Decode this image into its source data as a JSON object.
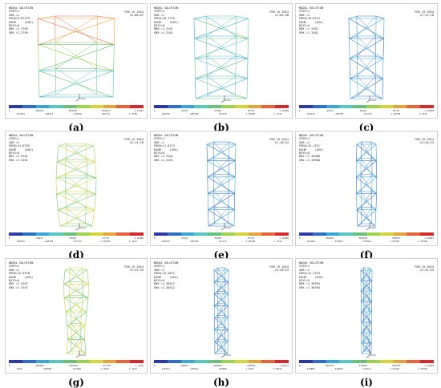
{
  "colors": {
    "scale": [
      "#2b3aa8",
      "#2e6fc9",
      "#3aa6d8",
      "#57c8c4",
      "#66c27a",
      "#9bd14c",
      "#d6d43b",
      "#e8a33a",
      "#e7643a",
      "#d42a2a"
    ]
  },
  "panels": [
    {
      "label": "(a)",
      "header_lines": [
        "NODAL SOLUTION",
        "STEP=1",
        "SUB =1",
        "FREQ=9.87979",
        "USUM     (AVG)",
        "RSYS=0",
        "DMX =1.2789",
        "SMX =1.2789"
      ],
      "header_right": [
        "FEB 15 2024",
        "15:06:07"
      ],
      "ticks_top": [
        "0",
        ".284209",
        ".568418",
        ".852627",
        "1.13684"
      ],
      "ticks_bot": [
        ".142104",
        ".426313",
        ".710522",
        ".994731",
        "1.2789"
      ]
    },
    {
      "label": "(b)",
      "header_lines": [
        "NODAL SOLUTION",
        "STEP=1",
        "SUB =1",
        "FREQ=10.2719",
        "USUM     (AVG)",
        "RSYS=0",
        "DMX =1.3161",
        "SMX =1.3161"
      ],
      "header_right": [
        "FEB 15 2024",
        "21:05:58"
      ],
      "ticks_top": [
        "0",
        ".29247",
        ".58494",
        ".87741",
        "1.16988"
      ],
      "ticks_bot": [
        ".146235",
        ".438705",
        ".731175",
        "1.02365",
        "1.3161"
      ]
    },
    {
      "label": "(c)",
      "header_lines": [
        "NODAL SOLUTION",
        "STEP=1",
        "SUB =1",
        "FREQ=10.6719",
        "USUM     (AVG)",
        "RSYS=0",
        "DMX =1.3161",
        "SMX =1.3161"
      ],
      "header_right": [
        "FEB 15 2024",
        "21:12:18"
      ],
      "ticks_top": [
        "0",
        ".29247",
        ".58494",
        ".87741",
        "1.16988"
      ],
      "ticks_bot": [
        ".146235",
        ".438705",
        ".731175",
        "1.02365",
        "1.3161"
      ]
    },
    {
      "label": "(d)",
      "header_lines": [
        "NODAL SOLUTION",
        "STEP=1",
        "SUB =1",
        "FREQ=11.0795",
        "USUM     (AVG)",
        "RSYS=0",
        "DMX =1.3161",
        "SMX =1.3161"
      ],
      "header_right": [
        "FEB 15 2024",
        "21:14:28"
      ],
      "ticks_top": [
        "0",
        ".29247",
        ".58494",
        ".87741",
        "1.16988"
      ],
      "ticks_bot": [
        ".146235",
        ".438705",
        ".731175",
        "1.02365",
        "1.3161"
      ]
    },
    {
      "label": "(e)",
      "header_lines": [
        "NODAL SOLUTION",
        "STEP=1",
        "SUB =1",
        "FREQ=11.8273",
        "USUM     (AVG)",
        "RSYS=0",
        "DMX =1.3161",
        "SMX =1.3161"
      ],
      "header_right": [
        "FEB 15 2024",
        "21:18:54"
      ],
      "ticks_top": [
        "0",
        ".29247",
        ".58494",
        ".87741",
        "1.16988"
      ],
      "ticks_bot": [
        ".146235",
        ".438705",
        ".731175",
        "1.02365",
        "1.3161"
      ]
    },
    {
      "label": "(f)",
      "header_lines": [
        "NODAL SOLUTION",
        "STEP=1",
        "SUB =1",
        "FREQ=12.1371",
        "USUM     (AVG)",
        "RSYS=0",
        "DMX =1.35908",
        "SMX =1.35908"
      ],
      "header_right": [
        "FEB 15 2024",
        "21:20:13"
      ],
      "ticks_top": [
        "0",
        ".302018",
        ".604036",
        ".906053",
        "1.20807"
      ],
      "ticks_bot": [
        ".151009",
        ".453027",
        ".755045",
        "1.05706",
        "1.35908"
      ]
    },
    {
      "label": "(g)",
      "header_lines": [
        "NODAL SOLUTION",
        "STEP=1",
        "SUB =1",
        "FREQ=12.9578",
        "USUM     (AVG)",
        "RSYS=0",
        "DMX =1.3167",
        "SMX =1.3167"
      ],
      "header_right": [
        "FEB 15 2024",
        "21:22:49"
      ],
      "ticks_top": [
        "0",
        ".292599",
        ".585198",
        ".877797",
        "1.1704"
      ],
      "ticks_bot": [
        ".1463",
        ".438899",
        ".731498",
        "1.0241",
        "1.3167"
      ]
    },
    {
      "label": "(h)",
      "header_lines": [
        "NODAL SOLUTION",
        "STEP=1",
        "SUB =1",
        "FREQ=13.5872",
        "USUM     (AVG)",
        "RSYS=0",
        "DMX =1.30512",
        "SMX =1.30512"
      ],
      "header_right": [
        "FEB 15 2024",
        "21:28:53"
      ],
      "ticks_top": [
        "0",
        ".290027",
        ".580054",
        ".870082",
        "1.16011"
      ],
      "ticks_bot": [
        ".145014",
        ".435041",
        ".725068",
        "1.0151",
        "1.30512"
      ]
    },
    {
      "label": "(i)",
      "header_lines": [
        "NODAL SOLUTION",
        "STEP=1",
        "SUB =1",
        "FREQ=14.1374",
        "USUM     (AVG)",
        "RSYS=0",
        "DMX =1.30394",
        "SMX =1.30394"
      ],
      "header_right": [
        "FEB 15 2024",
        "21:32:43"
      ],
      "ticks_top": [
        "0",
        ".289764",
        ".579529",
        ".869293",
        "1.15906"
      ],
      "ticks_bot": [
        ".144882",
        ".434647",
        ".724411",
        "1.01418",
        "1.30394"
      ]
    }
  ]
}
